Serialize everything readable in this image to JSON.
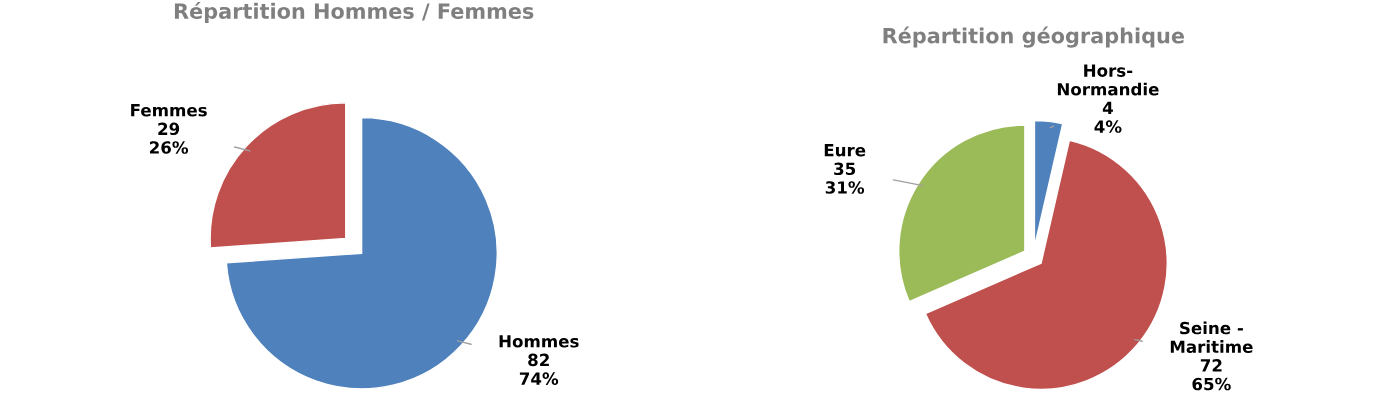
{
  "chart_data": [
    {
      "type": "pie",
      "title": "Répartition Hommes / Femmes",
      "categories": [
        "Hommes",
        "Femmes"
      ],
      "values": [
        82,
        29
      ],
      "value_labels": [
        "82\n74%",
        "29\n26%"
      ],
      "colors": [
        "#4f81bd",
        "#c0504d"
      ]
    },
    {
      "type": "pie",
      "title": "Répartition géographique",
      "categories": [
        "Hors-\nNormandie",
        "Seine -\nMaritime",
        "Eure"
      ],
      "values": [
        4,
        72,
        35
      ],
      "value_labels": [
        "4\n4%",
        "72\n65%",
        "35\n31%"
      ],
      "colors": [
        "#4f81bd",
        "#c0504d",
        "#9bbb59"
      ]
    }
  ]
}
